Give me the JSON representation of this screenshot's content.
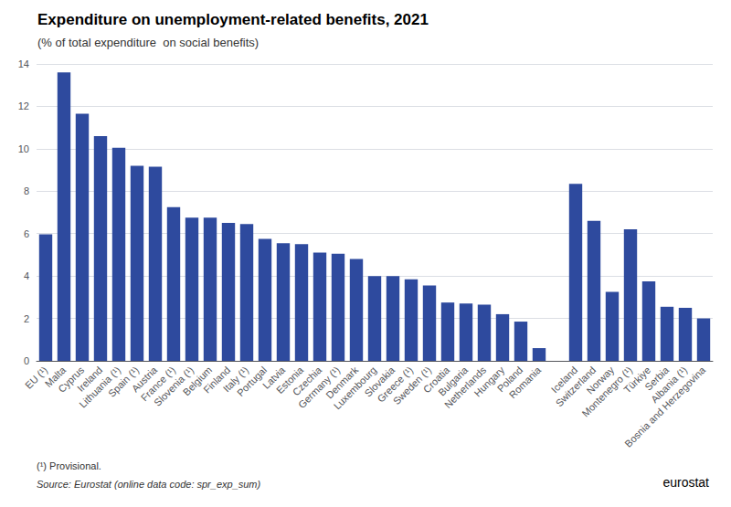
{
  "chart_data": {
    "type": "bar",
    "title": "Expenditure on unemployment-related benefits, 2021",
    "subtitle": "(% of total expenditure  on social benefits)",
    "categories": [
      "EU (¹)",
      "Malta",
      "Cyprus",
      "Ireland",
      "Lithuania (¹)",
      "Spain (¹)",
      "Austria",
      "France (¹)",
      "Slovenia (¹)",
      "Belgium",
      "Finland",
      "Italy (¹)",
      "Portugal",
      "Latvia",
      "Estonia",
      "Czechia",
      "Germany (¹)",
      "Denmark",
      "Luxembourg",
      "Slovakia",
      "Greece (¹)",
      "Sweden (¹)",
      "Croatia",
      "Bulgaria",
      "Netherlands",
      "Hungary",
      "Poland",
      "Romania",
      null,
      "Iceland",
      "Switzerland",
      "Norway",
      "Montenegro (¹)",
      "Türkiye",
      "Serbia",
      "Albania (¹)",
      "Bosnia and Herzegovina"
    ],
    "values": [
      5.97,
      13.6,
      11.65,
      10.6,
      10.05,
      9.2,
      9.15,
      7.25,
      6.75,
      6.75,
      6.5,
      6.45,
      5.75,
      5.55,
      5.5,
      5.1,
      5.05,
      4.8,
      4.0,
      4.0,
      3.85,
      3.55,
      2.75,
      2.7,
      2.65,
      2.2,
      1.85,
      0.6,
      0,
      8.35,
      6.6,
      3.25,
      6.2,
      3.75,
      2.55,
      2.5,
      2.0
    ],
    "color": "#2E4A9E",
    "ylim": [
      0,
      14
    ],
    "yticks": [
      0,
      2,
      4,
      6,
      8,
      10,
      12,
      14
    ],
    "grid": true,
    "annotations": [
      "(¹) Provisional.",
      "Source: Eurostat (online data code: spr_exp_sum)",
      "eurostat"
    ]
  }
}
